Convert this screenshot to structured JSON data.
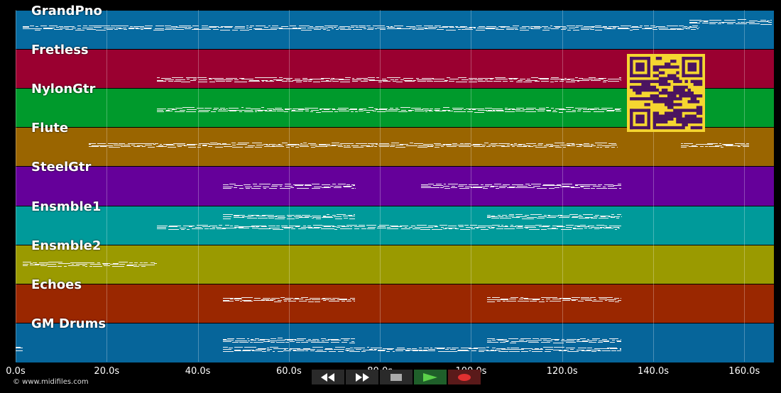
{
  "tracks": [
    {
      "name": "GrandPno",
      "color": "#066aa0"
    },
    {
      "name": "Fretless",
      "color": "#9a0030"
    },
    {
      "name": "NylonGtr",
      "color": "#009a2c"
    },
    {
      "name": "Flute",
      "color": "#9a6500"
    },
    {
      "name": "SteelGtr",
      "color": "#65009a"
    },
    {
      "name": "Ensmble1",
      "color": "#009a9a"
    },
    {
      "name": "Ensmble2",
      "color": "#9a9a00"
    },
    {
      "name": "Echoes",
      "color": "#9a2700"
    },
    {
      "name": "GM Drums",
      "color": "#06659a"
    }
  ],
  "time_axis": {
    "ticks": [
      "0.0s",
      "20.0s",
      "40.0s",
      "60.0s",
      "80.0s",
      "100.0s",
      "120.0s",
      "140.0s",
      "160.0s"
    ],
    "tick_seconds": [
      0,
      20,
      40,
      60,
      80,
      100,
      120,
      140,
      160
    ],
    "max_seconds": 166.5
  },
  "copyright": "© www.midifiles.com",
  "transport": {
    "buttons": [
      {
        "name": "rewind-button",
        "icon": "rewind-icon"
      },
      {
        "name": "fast-forward-button",
        "icon": "fast-forward-icon"
      },
      {
        "name": "stop-button",
        "icon": "stop-icon"
      },
      {
        "name": "play-button",
        "icon": "play-icon"
      },
      {
        "name": "record-button",
        "icon": "record-icon"
      }
    ]
  },
  "qr_code": {
    "icon": "qr-code-icon",
    "color": "#f5d630",
    "module_color": "#4b1460"
  },
  "note_segments": [
    {
      "track": 0,
      "start": 1.5,
      "end": 150,
      "pitch": 0.45
    },
    {
      "track": 0,
      "start": 148,
      "end": 166,
      "pitch": 0.3
    },
    {
      "track": 1,
      "start": 31,
      "end": 133,
      "pitch": 0.78
    },
    {
      "track": 2,
      "start": 31,
      "end": 133,
      "pitch": 0.55
    },
    {
      "track": 3,
      "start": 16,
      "end": 132,
      "pitch": 0.45
    },
    {
      "track": 3,
      "start": 146,
      "end": 161,
      "pitch": 0.45
    },
    {
      "track": 4,
      "start": 45.5,
      "end": 74.5,
      "pitch": 0.5
    },
    {
      "track": 4,
      "start": 89,
      "end": 133,
      "pitch": 0.5
    },
    {
      "track": 5,
      "start": 45.5,
      "end": 74.5,
      "pitch": 0.28
    },
    {
      "track": 5,
      "start": 103.5,
      "end": 133,
      "pitch": 0.28
    },
    {
      "track": 5,
      "start": 31,
      "end": 133,
      "pitch": 0.55
    },
    {
      "track": 6,
      "start": 1.5,
      "end": 31,
      "pitch": 0.5
    },
    {
      "track": 7,
      "start": 45.5,
      "end": 74.5,
      "pitch": 0.4
    },
    {
      "track": 7,
      "start": 103.5,
      "end": 133,
      "pitch": 0.4
    },
    {
      "track": 8,
      "start": 45.5,
      "end": 74.5,
      "pitch": 0.45
    },
    {
      "track": 8,
      "start": 103.5,
      "end": 133,
      "pitch": 0.45
    },
    {
      "track": 8,
      "start": 45.5,
      "end": 133,
      "pitch": 0.68
    },
    {
      "track": 8,
      "start": 0,
      "end": 1.5,
      "pitch": 0.65
    }
  ]
}
